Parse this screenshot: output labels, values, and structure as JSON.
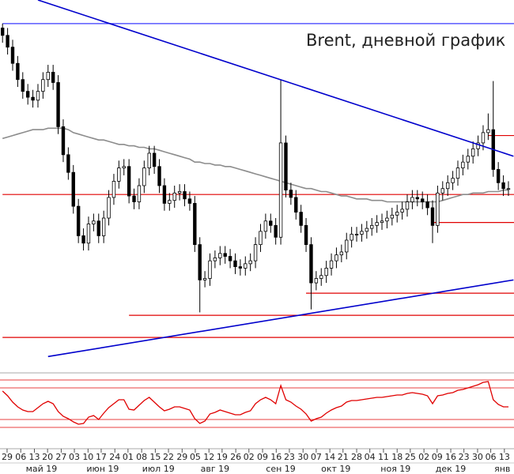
{
  "chart_data": {
    "type": "candlestick",
    "title": "Brent, дневной график",
    "open": [
      75.3,
      74.8,
      74.0,
      72.9,
      71.8,
      71.0,
      70.6,
      70.4,
      71.0,
      71.8,
      72.3,
      71.6,
      68.6,
      66.7,
      65.5,
      63.2,
      61.2,
      60.7,
      62.0,
      62.2,
      61.2,
      62.4,
      63.8,
      64.9,
      65.8,
      65.9,
      63.9,
      63.5,
      64.6,
      65.8,
      66.8,
      65.9,
      64.6,
      63.4,
      63.6,
      64.1,
      64.2,
      63.7,
      63.4,
      60.6,
      58.2,
      58.3,
      59.5,
      59.7,
      60.0,
      59.8,
      59.5,
      59.1,
      59.0,
      59.3,
      59.5,
      60.6,
      61.5,
      62.2,
      61.9,
      61.1,
      67.5,
      64.3,
      63.8,
      62.8,
      61.9,
      60.6,
      58.0,
      58.3,
      58.5,
      59.0,
      59.5,
      59.9,
      60.1,
      60.9,
      61.3,
      61.3,
      61.5,
      61.7,
      61.9,
      62.1,
      62.2,
      62.4,
      62.6,
      62.8,
      63.0,
      63.5,
      63.8,
      63.7,
      63.5,
      63.1,
      61.9,
      64.1,
      64.4,
      64.8,
      65.1,
      65.8,
      66.2,
      66.6,
      67.1,
      67.5,
      68.2,
      68.4,
      65.7,
      64.8,
      64.4
    ],
    "high": [
      75.6,
      75.3,
      74.5,
      73.4,
      72.3,
      71.5,
      71.1,
      71.5,
      72.3,
      72.8,
      72.8,
      72.1,
      69.1,
      67.2,
      66.0,
      63.7,
      61.7,
      62.5,
      62.7,
      62.7,
      62.9,
      64.3,
      65.4,
      66.3,
      66.4,
      66.4,
      64.4,
      65.1,
      66.3,
      67.3,
      67.3,
      66.4,
      65.1,
      64.1,
      64.6,
      64.7,
      64.7,
      64.2,
      63.9,
      61.1,
      58.8,
      60.0,
      60.2,
      60.5,
      60.5,
      60.3,
      60.0,
      59.6,
      59.8,
      60.0,
      61.1,
      62.0,
      62.7,
      62.7,
      62.4,
      71.8,
      68.0,
      64.8,
      64.3,
      63.3,
      62.4,
      61.1,
      58.8,
      59.0,
      59.5,
      60.0,
      60.4,
      60.6,
      61.4,
      61.8,
      61.8,
      62.0,
      62.2,
      62.4,
      62.6,
      62.7,
      62.9,
      63.1,
      63.3,
      63.5,
      64.0,
      64.3,
      64.3,
      64.2,
      64.0,
      63.6,
      64.6,
      64.9,
      65.3,
      65.6,
      66.3,
      66.7,
      67.1,
      67.6,
      68.0,
      68.7,
      69.5,
      71.7,
      66.2,
      65.3,
      64.9
    ],
    "low": [
      74.3,
      73.5,
      72.4,
      71.3,
      70.5,
      70.1,
      69.9,
      69.9,
      70.5,
      71.3,
      71.1,
      68.1,
      66.2,
      65.0,
      62.7,
      60.7,
      60.2,
      60.2,
      61.5,
      60.7,
      60.7,
      61.9,
      63.3,
      64.4,
      65.3,
      63.4,
      63.0,
      63.0,
      64.1,
      65.3,
      65.4,
      64.1,
      62.9,
      62.9,
      63.1,
      63.6,
      63.2,
      62.9,
      60.1,
      56.0,
      57.7,
      57.8,
      59.0,
      59.2,
      59.3,
      59.0,
      58.6,
      58.5,
      58.5,
      58.8,
      59.0,
      60.1,
      61.0,
      61.4,
      60.6,
      60.6,
      63.8,
      63.3,
      62.3,
      61.4,
      60.1,
      56.2,
      57.5,
      57.8,
      58.0,
      58.5,
      59.0,
      59.4,
      59.6,
      60.4,
      60.8,
      60.8,
      61.0,
      61.2,
      61.4,
      61.6,
      61.7,
      61.9,
      62.1,
      62.3,
      62.5,
      63.0,
      63.2,
      63.0,
      62.6,
      60.7,
      61.4,
      63.6,
      63.9,
      64.3,
      64.6,
      65.3,
      65.7,
      66.1,
      66.6,
      67.0,
      67.7,
      65.2,
      64.3,
      63.9,
      63.9
    ],
    "close": [
      74.8,
      74.0,
      72.9,
      71.8,
      71.0,
      70.6,
      70.4,
      71.0,
      71.8,
      72.3,
      71.6,
      68.6,
      66.7,
      65.5,
      63.2,
      61.2,
      60.7,
      62.0,
      62.2,
      61.2,
      62.4,
      63.8,
      64.9,
      65.8,
      65.9,
      63.9,
      63.5,
      64.6,
      65.8,
      66.8,
      65.9,
      64.6,
      63.4,
      63.6,
      64.1,
      64.2,
      63.7,
      63.4,
      60.6,
      58.2,
      58.3,
      59.5,
      59.7,
      60.0,
      59.8,
      59.5,
      59.1,
      59.0,
      59.3,
      59.5,
      60.6,
      61.5,
      62.2,
      61.9,
      61.1,
      67.5,
      64.3,
      63.8,
      62.8,
      61.9,
      60.6,
      58.0,
      58.3,
      58.5,
      59.0,
      59.5,
      59.9,
      60.1,
      60.9,
      61.3,
      61.3,
      61.5,
      61.7,
      61.9,
      62.1,
      62.2,
      62.4,
      62.6,
      62.8,
      63.0,
      63.5,
      63.8,
      63.7,
      63.5,
      63.1,
      61.9,
      64.1,
      64.4,
      64.8,
      65.1,
      65.8,
      66.2,
      66.6,
      67.1,
      67.5,
      68.2,
      68.4,
      65.7,
      64.8,
      64.4,
      64.4
    ],
    "ma": {
      "color": "#8c8c8c",
      "values": [
        67.8,
        67.9,
        68.0,
        68.1,
        68.2,
        68.3,
        68.4,
        68.4,
        68.4,
        68.5,
        68.5,
        68.5,
        68.5,
        68.4,
        68.2,
        68.1,
        68.0,
        67.9,
        67.8,
        67.7,
        67.7,
        67.6,
        67.5,
        67.4,
        67.4,
        67.3,
        67.3,
        67.2,
        67.2,
        67.1,
        67.1,
        67.0,
        66.9,
        66.8,
        66.7,
        66.6,
        66.5,
        66.4,
        66.2,
        66.2,
        66.1,
        66.1,
        66.0,
        66.0,
        65.9,
        65.9,
        65.8,
        65.7,
        65.6,
        65.5,
        65.4,
        65.3,
        65.2,
        65.1,
        65.0,
        64.9,
        64.8,
        64.7,
        64.6,
        64.5,
        64.4,
        64.4,
        64.3,
        64.2,
        64.2,
        64.1,
        64.0,
        63.9,
        63.9,
        63.8,
        63.7,
        63.7,
        63.7,
        63.6,
        63.6,
        63.6,
        63.5,
        63.5,
        63.5,
        63.5,
        63.5,
        63.5,
        63.5,
        63.5,
        63.5,
        63.5,
        63.5,
        63.6,
        63.7,
        63.8,
        63.9,
        64.0,
        64.0,
        64.1,
        64.1,
        64.1,
        64.2,
        64.2,
        64.2,
        64.3,
        64.3
      ]
    },
    "rsi": {
      "color": "#e00000",
      "values": [
        66,
        60,
        52,
        46,
        42,
        40,
        40,
        45,
        50,
        53,
        50,
        40,
        34,
        31,
        27,
        24,
        25,
        33,
        35,
        30,
        38,
        45,
        50,
        55,
        55,
        43,
        42,
        48,
        54,
        58,
        52,
        46,
        41,
        43,
        46,
        46,
        44,
        42,
        31,
        25,
        28,
        37,
        39,
        42,
        40,
        38,
        36,
        36,
        39,
        41,
        50,
        55,
        58,
        55,
        50,
        73,
        55,
        52,
        47,
        43,
        37,
        28,
        31,
        33,
        38,
        42,
        45,
        47,
        52,
        54,
        54,
        55,
        56,
        57,
        58,
        58,
        59,
        60,
        61,
        61,
        63,
        64,
        63,
        62,
        60,
        50,
        60,
        61,
        63,
        64,
        67,
        68,
        70,
        72,
        74,
        77,
        78,
        55,
        49,
        46,
        46
      ],
      "levels": [
        80,
        70,
        30,
        20
      ],
      "ylim": [
        11,
        86
      ]
    },
    "levels": [
      {
        "value": 75.6,
        "from": 0,
        "color": "#3a3aff"
      },
      {
        "value": 64.0,
        "from": 0,
        "color": "#e00000"
      },
      {
        "value": 55.8,
        "from": 25,
        "color": "#e00000"
      },
      {
        "value": 54.3,
        "from": 0,
        "color": "#e00000"
      },
      {
        "value": 57.3,
        "from": 60,
        "color": "#e00000"
      },
      {
        "value": 62.1,
        "from": 85,
        "color": "#e00000"
      },
      {
        "value": 68.0,
        "from": 96,
        "color": "#e00000"
      }
    ],
    "trendlines": [
      {
        "start": [
          7,
          77.2
        ],
        "end": [
          101,
          66.6
        ],
        "color": "#0000cc"
      },
      {
        "start": [
          9,
          53.0
        ],
        "end": [
          101,
          58.2
        ],
        "color": "#0000cc"
      }
    ],
    "xlim": [
      -0.5,
      101.1
    ],
    "ylim": [
      52.0,
      77.2
    ],
    "xticks": [
      {
        "value": 0.9,
        "label": "29"
      },
      {
        "value": 3.6,
        "label": "06"
      },
      {
        "value": 6.3,
        "label": "13"
      },
      {
        "value": 8.9,
        "label": "20"
      },
      {
        "value": 11.6,
        "label": "27"
      },
      {
        "value": 14.2,
        "label": "03"
      },
      {
        "value": 16.9,
        "label": "10"
      },
      {
        "value": 19.5,
        "label": "17"
      },
      {
        "value": 22.2,
        "label": "24"
      },
      {
        "value": 24.8,
        "label": "01"
      },
      {
        "value": 27.5,
        "label": "08"
      },
      {
        "value": 30.2,
        "label": "15"
      },
      {
        "value": 32.8,
        "label": "22"
      },
      {
        "value": 35.5,
        "label": "29"
      },
      {
        "value": 38.1,
        "label": "05"
      },
      {
        "value": 40.8,
        "label": "12"
      },
      {
        "value": 43.4,
        "label": "19"
      },
      {
        "value": 46.1,
        "label": "26"
      },
      {
        "value": 48.7,
        "label": "02"
      },
      {
        "value": 51.4,
        "label": "09"
      },
      {
        "value": 54.1,
        "label": "16"
      },
      {
        "value": 56.7,
        "label": "23"
      },
      {
        "value": 59.4,
        "label": "30"
      },
      {
        "value": 62.0,
        "label": "07"
      },
      {
        "value": 64.7,
        "label": "14"
      },
      {
        "value": 67.3,
        "label": "21"
      },
      {
        "value": 70.0,
        "label": "28"
      },
      {
        "value": 72.6,
        "label": "04"
      },
      {
        "value": 75.3,
        "label": "11"
      },
      {
        "value": 78.0,
        "label": "18"
      },
      {
        "value": 80.6,
        "label": "25"
      },
      {
        "value": 83.3,
        "label": "02"
      },
      {
        "value": 85.9,
        "label": "09"
      },
      {
        "value": 88.6,
        "label": "16"
      },
      {
        "value": 91.2,
        "label": "23"
      },
      {
        "value": 93.9,
        "label": "30"
      },
      {
        "value": 96.5,
        "label": "06"
      },
      {
        "value": 99.2,
        "label": "13"
      }
    ],
    "month_labels": [
      {
        "value": 7.7,
        "label": "май 19"
      },
      {
        "value": 19.8,
        "label": "июн 19"
      },
      {
        "value": 30.8,
        "label": "июл 19"
      },
      {
        "value": 42.0,
        "label": "авг 19"
      },
      {
        "value": 55.0,
        "label": "сен 19"
      },
      {
        "value": 65.9,
        "label": "окт 19"
      },
      {
        "value": 77.7,
        "label": "ноя 19"
      },
      {
        "value": 88.6,
        "label": "дек 19"
      },
      {
        "value": 98.8,
        "label": "янв"
      }
    ]
  }
}
